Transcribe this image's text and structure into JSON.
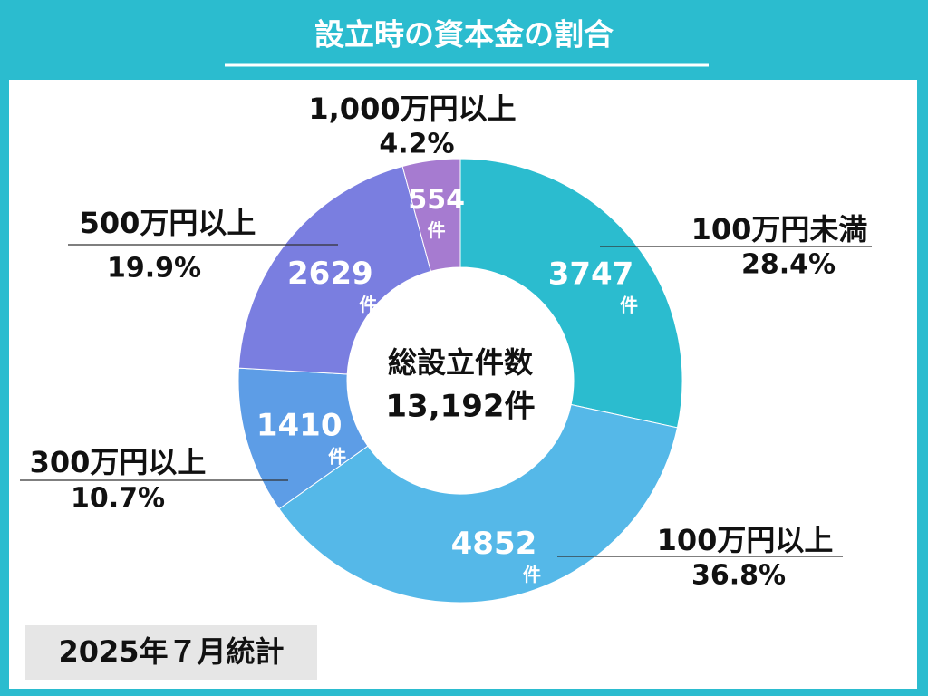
{
  "chart_data": {
    "type": "donut",
    "title": "設立時の資本金の割合",
    "categories": [
      "100万円未満",
      "100万円以上",
      "300万円以上",
      "500万円以上",
      "1,000万円以上"
    ],
    "values": [
      28.4,
      36.8,
      10.7,
      19.9,
      4.2
    ],
    "value_labels": [
      "28.4%",
      "36.8%",
      "10.7%",
      "19.9%",
      "4.2%"
    ],
    "counts": [
      3747,
      4852,
      1410,
      2629,
      554
    ],
    "unit": "件",
    "colors": [
      "#2bbccf",
      "#55b8e8",
      "#5d9de6",
      "#7a7ee0",
      "#a67bd0"
    ],
    "center_title": "総設立件数",
    "center_value": "13,192件",
    "footnote": "2025年７月統計"
  }
}
